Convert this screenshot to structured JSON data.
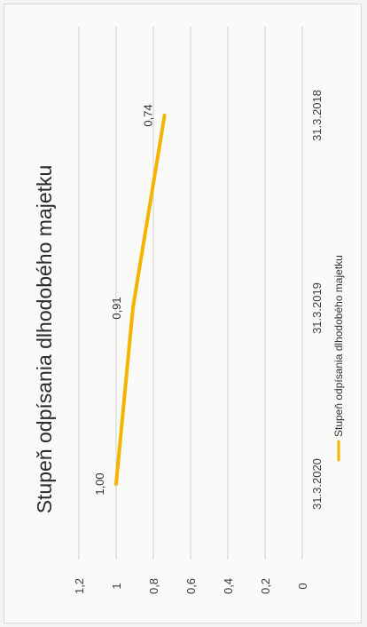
{
  "chart_data": {
    "type": "line",
    "title": "Stupeň odpísania dlhodobého majetku",
    "categories": [
      "31.3.2020",
      "31.3.2019",
      "31.3.2018"
    ],
    "series": [
      {
        "name": "Stupeň odpísania dlhodobého majetku",
        "values": [
          1.0,
          0.91,
          0.74
        ],
        "data_labels": [
          "1,00",
          "0,91",
          "0,74"
        ],
        "color": "#f5b400"
      }
    ],
    "y_ticks": [
      "0",
      "0,2",
      "0,4",
      "0,6",
      "0,8",
      "1",
      "1,2"
    ],
    "ylim": [
      0,
      1.2
    ],
    "grid": true,
    "legend": "bottom",
    "orientation": "rotated-90"
  }
}
